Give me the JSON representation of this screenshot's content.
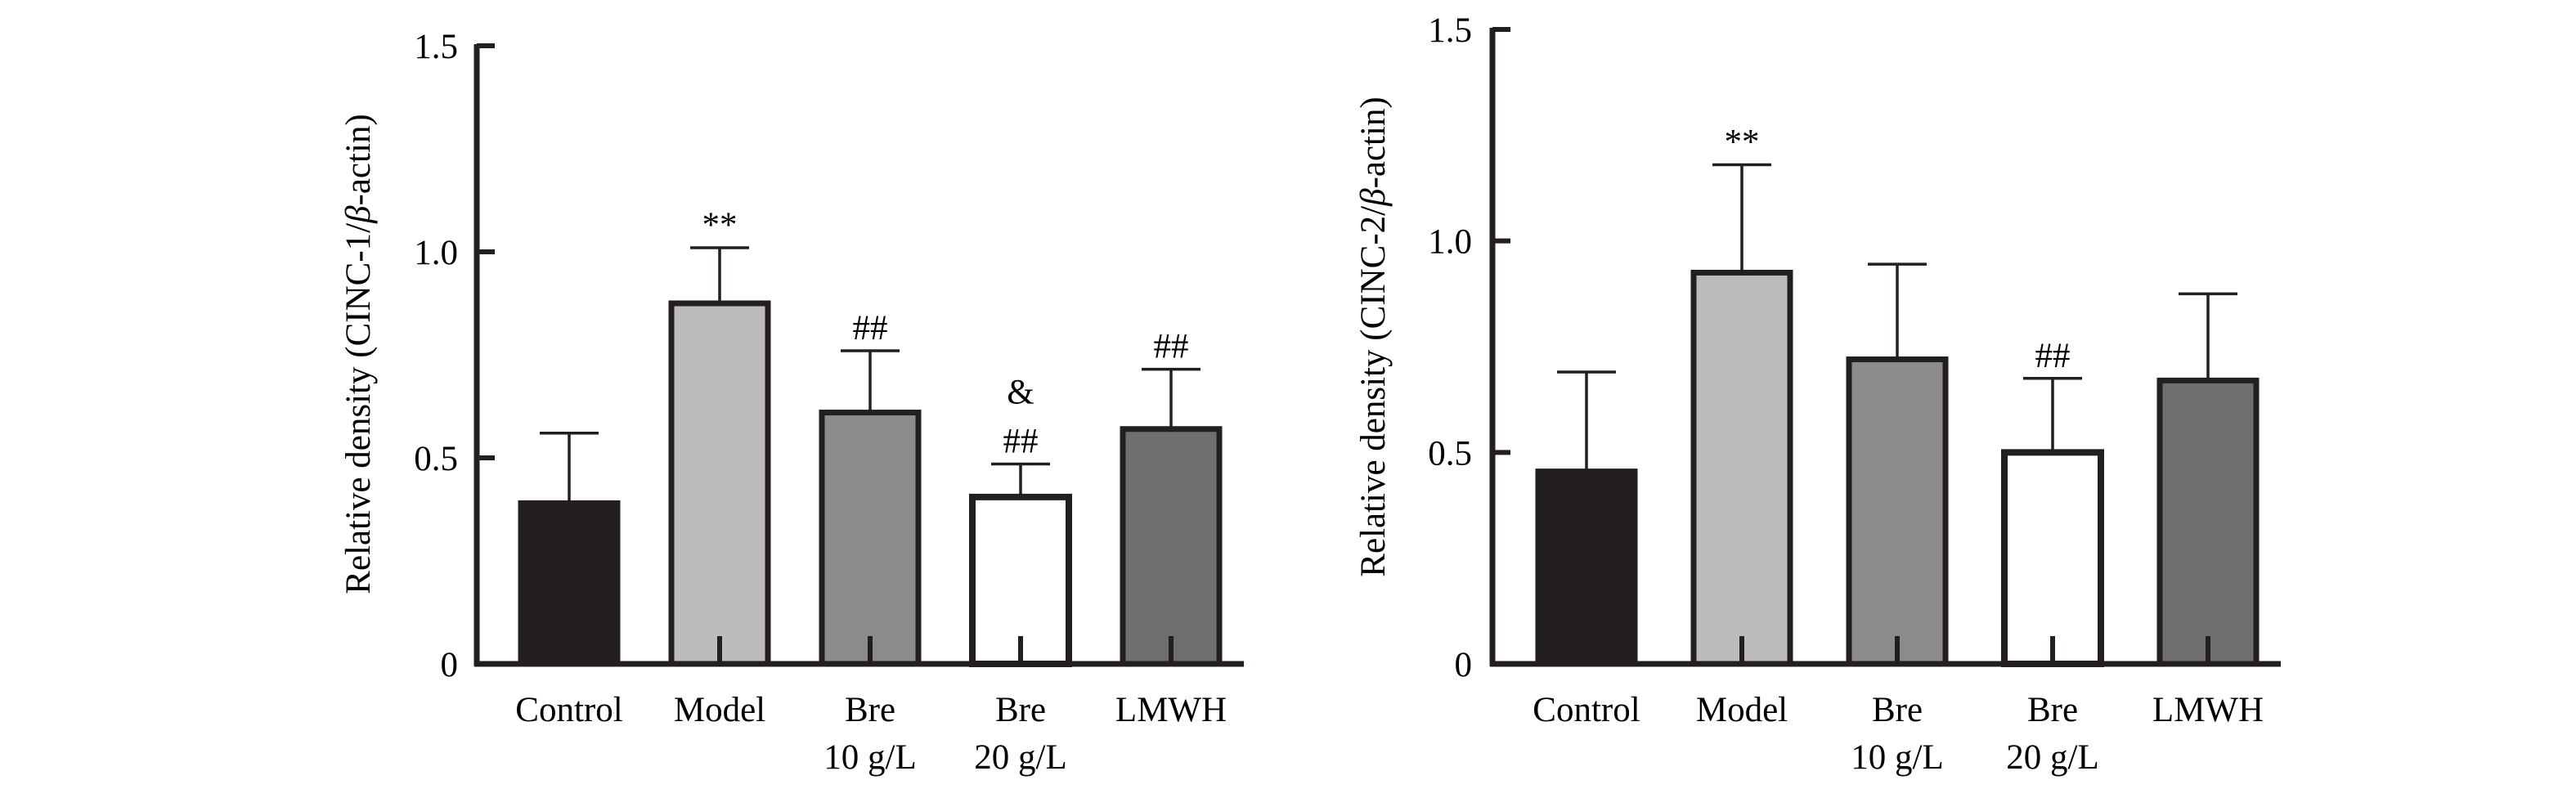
{
  "chart_data": [
    {
      "type": "bar",
      "ylabel_prefix": "Relative density (CINC-1/",
      "ylabel_beta": "β",
      "ylabel_suffix": "-actin)",
      "ylim": [
        0,
        1.5
      ],
      "yticks": [
        {
          "value": 0,
          "label": "0"
        },
        {
          "value": 0.5,
          "label": "0.5"
        },
        {
          "value": 1.0,
          "label": "1.0"
        },
        {
          "value": 1.5,
          "label": "1.5"
        }
      ],
      "categories": [
        {
          "line1": "Control",
          "line2": ""
        },
        {
          "line1": "Model",
          "line2": ""
        },
        {
          "line1": "Bre",
          "line2": "10 g/L"
        },
        {
          "line1": "Bre",
          "line2": "20 g/L"
        },
        {
          "line1": "LMWH",
          "line2": ""
        }
      ],
      "values": [
        0.39,
        0.875,
        0.61,
        0.405,
        0.57
      ],
      "errors": [
        0.17,
        0.135,
        0.15,
        0.08,
        0.145
      ],
      "significance": [
        [],
        [
          "**"
        ],
        [
          "##"
        ],
        [
          "##",
          "&"
        ],
        [
          "##"
        ]
      ],
      "colors": [
        "#231f20",
        "#bcbcbc",
        "#8c8b8b",
        "#ffffff",
        "#706f6f"
      ]
    },
    {
      "type": "bar",
      "ylabel_prefix": "Relative density (CINC-2/",
      "ylabel_beta": "β",
      "ylabel_suffix": "-actin)",
      "ylim": [
        0,
        1.5
      ],
      "yticks": [
        {
          "value": 0,
          "label": "0"
        },
        {
          "value": 0.5,
          "label": "0.5"
        },
        {
          "value": 1.0,
          "label": "1.0"
        },
        {
          "value": 1.5,
          "label": "1.5"
        }
      ],
      "categories": [
        {
          "line1": "Control",
          "line2": ""
        },
        {
          "line1": "Model",
          "line2": ""
        },
        {
          "line1": "Bre",
          "line2": "10 g/L"
        },
        {
          "line1": "Bre",
          "line2": "20 g/L"
        },
        {
          "line1": "LMWH",
          "line2": ""
        }
      ],
      "values": [
        0.455,
        0.925,
        0.72,
        0.5,
        0.67
      ],
      "errors": [
        0.235,
        0.255,
        0.225,
        0.175,
        0.205
      ],
      "significance": [
        [],
        [
          "**"
        ],
        [],
        [
          "##"
        ],
        []
      ],
      "colors": [
        "#231f20",
        "#bcbcbc",
        "#8c8b8b",
        "#ffffff",
        "#706f6f"
      ]
    }
  ]
}
